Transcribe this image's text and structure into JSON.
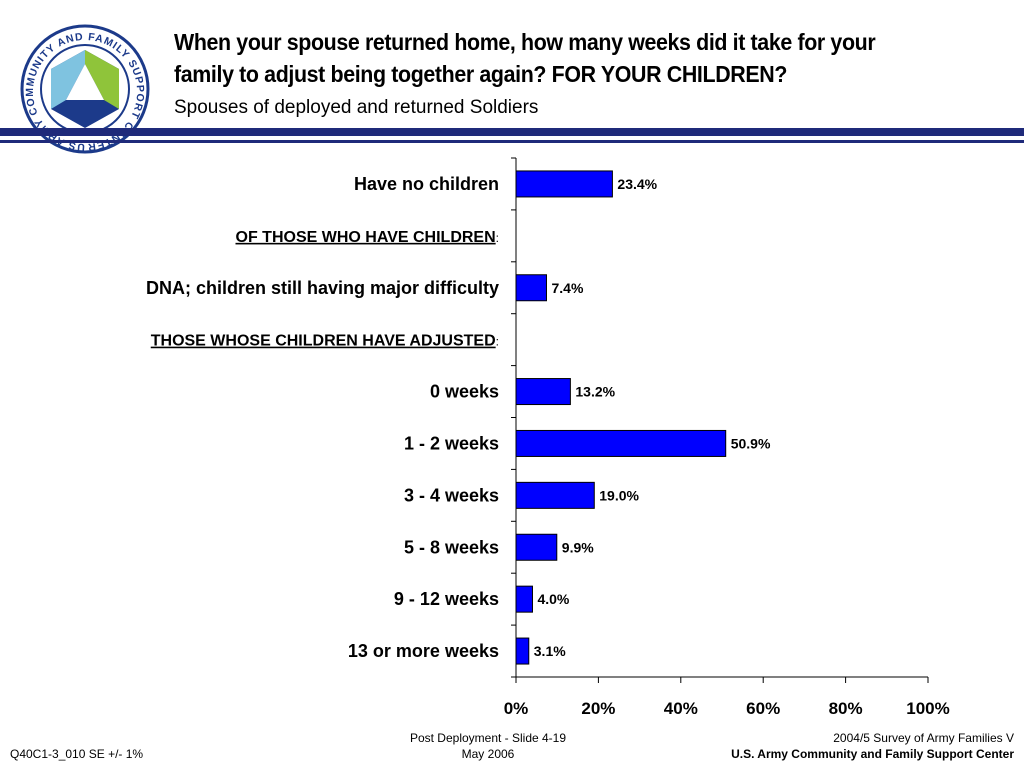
{
  "header": {
    "title_line1": "When your spouse returned home, how many weeks did it take for your",
    "title_line2": "family to adjust being together again?  FOR YOUR CHILDREN?",
    "subtitle": "Spouses of deployed and returned Soldiers"
  },
  "logo": {
    "text": "US ARMY COMMUNITY AND FAMILY SUPPORT CENTER",
    "colors": {
      "ring": "#1c3a8a",
      "light": "#7fc3e0",
      "green": "#8fc43a",
      "dark": "#1c3a8a"
    }
  },
  "colors": {
    "rule": "#1f2a7a",
    "bar": "#0000ff",
    "bar_stroke": "#000000"
  },
  "chart_data": {
    "type": "bar",
    "orientation": "horizontal",
    "categories": [
      "Have no children",
      "OF THOSE WHO HAVE CHILDREN:",
      "DNA; children still having major difficulty",
      "THOSE WHOSE CHILDREN HAVE ADJUSTED:",
      "0 weeks",
      "1 - 2 weeks",
      "3 - 4 weeks",
      "5 - 8 weeks",
      "9 - 12 weeks",
      "13 or more weeks"
    ],
    "values": [
      23.4,
      null,
      7.4,
      null,
      13.2,
      50.9,
      19.0,
      9.9,
      4.0,
      3.1
    ],
    "value_labels": [
      "23.4%",
      "",
      "7.4%",
      "",
      "13.2%",
      "50.9%",
      "19.0%",
      "9.9%",
      "4.0%",
      "3.1%"
    ],
    "xlim": [
      0,
      100
    ],
    "xticks": [
      0,
      20,
      40,
      60,
      80,
      100
    ],
    "xtick_labels": [
      "0%",
      "20%",
      "40%",
      "60%",
      "80%",
      "100%"
    ],
    "title": "",
    "xlabel": "",
    "ylabel": "",
    "grid": false,
    "legend": "none"
  },
  "footer": {
    "left": "Q40C1-3_010 SE +/- 1%",
    "center_line1": "Post Deployment - Slide 4-19",
    "center_line2": "May 2006",
    "right_line1": "2004/5 Survey of Army Families V",
    "right_line2": "U.S. Army Community and Family Support Center"
  }
}
